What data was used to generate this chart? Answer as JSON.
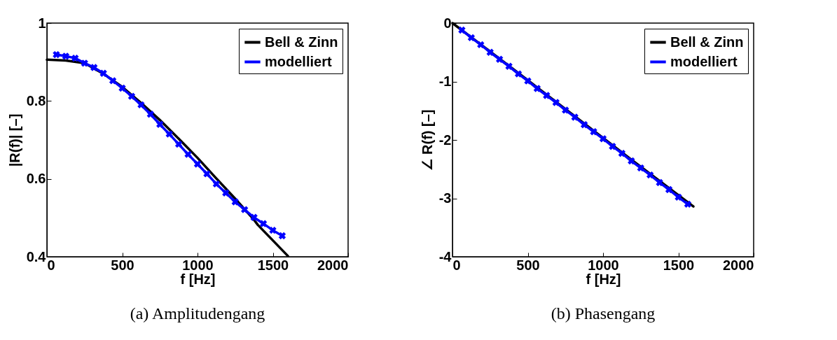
{
  "chart_data": [
    {
      "type": "line",
      "title": "(a) Amplitudengang",
      "xlabel": "f [Hz]",
      "ylabel": "|R(f)| [–]",
      "xlim": [
        0,
        2000
      ],
      "xticks": [
        0,
        500,
        1000,
        1500,
        2000
      ],
      "ylim": [
        0.4,
        1
      ],
      "yticks": [
        0.4,
        0.6,
        0.8,
        1
      ],
      "grid": false,
      "legend": "top right",
      "line_style": "solid",
      "series": [
        {
          "name": "Bell & Zinn",
          "color": "#000000",
          "marker": "none",
          "x": [
            0,
            125,
            250,
            375,
            500,
            625,
            750,
            875,
            1000,
            1125,
            1250,
            1375,
            1400,
            1500,
            1600
          ],
          "values": [
            0.906,
            0.904,
            0.897,
            0.87,
            0.836,
            0.795,
            0.751,
            0.703,
            0.654,
            0.601,
            0.549,
            0.495,
            0.482,
            0.442,
            0.402
          ]
        },
        {
          "name": "modelliert",
          "color": "#0000ff",
          "marker": "cross",
          "x": [
            62.5,
            125,
            187.5,
            250,
            312.5,
            375,
            437.5,
            500,
            562.5,
            625,
            687.5,
            750,
            812.5,
            875,
            937.5,
            1000,
            1062.5,
            1125,
            1187.5,
            1250,
            1312.5,
            1375,
            1437.5,
            1500,
            1562.5
          ],
          "values": [
            0.919,
            0.915,
            0.91,
            0.897,
            0.886,
            0.871,
            0.852,
            0.833,
            0.812,
            0.79,
            0.766,
            0.74,
            0.715,
            0.689,
            0.663,
            0.638,
            0.613,
            0.587,
            0.564,
            0.541,
            0.521,
            0.501,
            0.485,
            0.468,
            0.454
          ]
        }
      ]
    },
    {
      "type": "line",
      "title": "(b) Phasengang",
      "xlabel": "f [Hz]",
      "ylabel": "∠ R(f) [–]",
      "xlim": [
        0,
        2000
      ],
      "xticks": [
        0,
        500,
        1000,
        1500,
        2000
      ],
      "ylim": [
        -4,
        0
      ],
      "yticks": [
        -4,
        -3,
        -2,
        -1,
        0
      ],
      "grid": false,
      "legend": "top right",
      "line_style": "solid",
      "series": [
        {
          "name": "Bell & Zinn",
          "color": "#000000",
          "marker": "none",
          "x": [
            0,
            400,
            800,
            1200,
            1600
          ],
          "values": [
            0,
            -0.78,
            -1.57,
            -2.36,
            -3.14
          ]
        },
        {
          "name": "modelliert",
          "color": "#0000ff",
          "marker": "cross",
          "x": [
            62.5,
            125,
            187.5,
            250,
            312.5,
            375,
            437.5,
            500,
            562.5,
            625,
            687.5,
            750,
            812.5,
            875,
            937.5,
            1000,
            1062.5,
            1125,
            1187.5,
            1250,
            1312.5,
            1375,
            1437.5,
            1500,
            1562.5
          ],
          "values": [
            -0.12,
            -0.25,
            -0.37,
            -0.5,
            -0.62,
            -0.74,
            -0.87,
            -0.99,
            -1.12,
            -1.24,
            -1.36,
            -1.49,
            -1.61,
            -1.74,
            -1.86,
            -1.98,
            -2.11,
            -2.23,
            -2.36,
            -2.48,
            -2.6,
            -2.73,
            -2.85,
            -2.98,
            -3.1
          ]
        }
      ]
    }
  ]
}
